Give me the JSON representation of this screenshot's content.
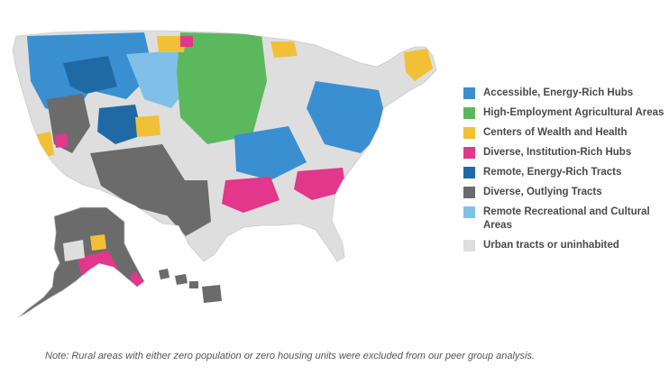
{
  "legend": {
    "items": [
      {
        "label": "Accessible, Energy-Rich Hubs",
        "color": "#3a8fd1"
      },
      {
        "label": "High-Employment Agricultural Areas",
        "color": "#5cb85c"
      },
      {
        "label": "Centers of Wealth and Health",
        "color": "#f2c037"
      },
      {
        "label": "Diverse, Institution-Rich Hubs",
        "color": "#e2378a"
      },
      {
        "label": "Remote, Energy-Rich Tracts",
        "color": "#1f6aa5"
      },
      {
        "label": "Diverse, Outlying Tracts",
        "color": "#6b6b6b"
      },
      {
        "label": "Remote Recreational and Cultural Areas",
        "color": "#80c0e8"
      },
      {
        "label": "Urban tracts or uninhabited",
        "color": "#dedede"
      }
    ]
  },
  "note": "Note: Rural areas with either zero population or zero housing units were excluded from our peer group analysis."
}
